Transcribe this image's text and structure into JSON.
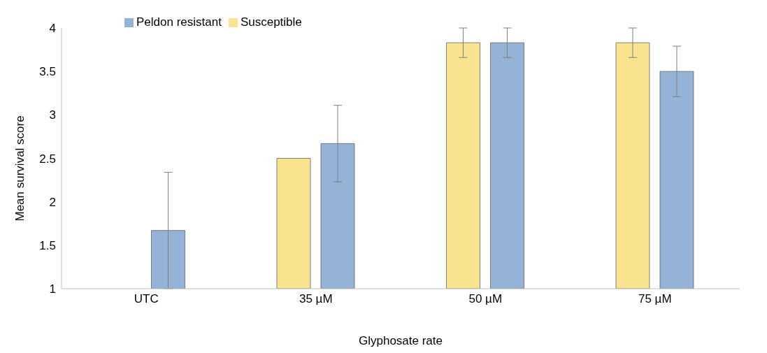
{
  "chart_data": {
    "type": "bar",
    "xlabel": "Glyphosate rate",
    "ylabel": "Mean survival score",
    "categories": [
      "UTC",
      "35 µM",
      "50 µM",
      "75 µM"
    ],
    "series": [
      {
        "name": "Susceptible",
        "color": "#f8e38e",
        "values": [
          1,
          2.5,
          3.83,
          3.83
        ],
        "errors": [
          null,
          null,
          0.17,
          0.17
        ]
      },
      {
        "name": "Peldon resistant",
        "color": "#95b3d7",
        "values": [
          1.67,
          2.67,
          3.83,
          3.5
        ],
        "errors": [
          0.67,
          0.44,
          0.17,
          0.29
        ]
      }
    ],
    "ylim": [
      1,
      4
    ],
    "yticks": [
      1,
      1.5,
      2,
      2.5,
      3,
      3.5,
      4
    ],
    "grid": false,
    "legend": "top left"
  }
}
